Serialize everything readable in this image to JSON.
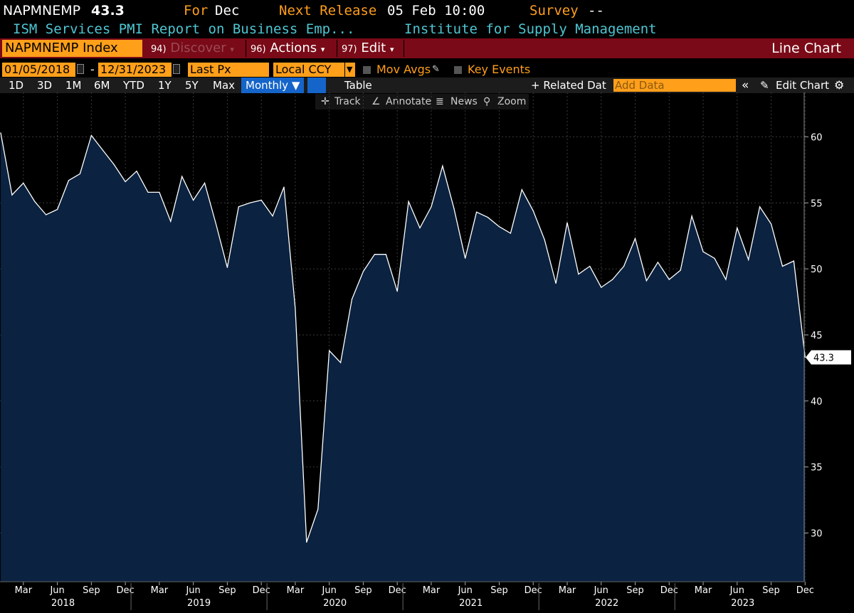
{
  "header": {
    "ticker": "NAPMNEMP",
    "last_value": "43.3",
    "for_label": "For",
    "for_period": "Dec",
    "next_release_label": "Next Release",
    "next_release_value": "05 Feb 10:00",
    "survey_label": "Survey",
    "survey_value": "--",
    "description": "ISM Services PMI Report on Business Emp...",
    "source": "Institute for Supply Management"
  },
  "command_bar": {
    "security": "NAPMNEMP Index",
    "discover_num": "94)",
    "discover_label": "Discover",
    "actions_num": "96)",
    "actions_label": "Actions",
    "edit_num": "97)",
    "edit_label": "Edit",
    "chart_type": "Line Chart"
  },
  "settings_bar": {
    "start_date": "01/05/2018",
    "date_sep": "-",
    "end_date": "12/31/2023",
    "field": "Last Px",
    "currency": "Local CCY",
    "mov_avgs": "Mov Avgs",
    "key_events": "Key Events"
  },
  "toolbar": {
    "periods": [
      "1D",
      "3D",
      "1M",
      "6M",
      "YTD",
      "1Y",
      "5Y",
      "Max"
    ],
    "frequency": "Monthly ▼",
    "table": "Table",
    "related_data": "+ Related Dat",
    "add_data_placeholder": "Add Data",
    "collapse": "«",
    "edit_chart": "Edit Chart"
  },
  "chart_tools": {
    "track": "Track",
    "annotate": "Annotate",
    "news": "News",
    "zoom": "Zoom"
  },
  "colors": {
    "background": "#000000",
    "area_fill": "#0b2240",
    "line": "#ffffff",
    "orange": "#ff9f1a",
    "grid": "#3a3a3a"
  },
  "chart_data": {
    "type": "area",
    "title": "NAPMNEMP Index",
    "ylabel": "",
    "xlabel": "",
    "ylim": [
      26.5,
      63.5
    ],
    "yticks": [
      30,
      35,
      40,
      45,
      50,
      55,
      60
    ],
    "last_value_label": "43.3",
    "x_tick_labels": [
      "Mar",
      "Jun",
      "Sep",
      "Dec",
      "Mar",
      "Jun",
      "Sep",
      "Dec",
      "Mar",
      "Jun",
      "Sep",
      "Dec",
      "Mar",
      "Jun",
      "Sep",
      "Dec",
      "Mar",
      "Jun",
      "Sep",
      "Dec",
      "Mar",
      "Jun",
      "Sep",
      "Dec"
    ],
    "year_labels": [
      "2018",
      "2019",
      "2020",
      "2021",
      "2022",
      "2023"
    ],
    "series": [
      {
        "name": "NAPMNEMP Index",
        "start": "2018-01",
        "values": [
          60.3,
          55.6,
          56.5,
          55.1,
          54.1,
          54.5,
          56.7,
          57.2,
          60.1,
          59.0,
          57.9,
          56.6,
          57.4,
          55.8,
          55.8,
          53.6,
          57.0,
          55.2,
          56.5,
          53.4,
          50.1,
          54.7,
          55.0,
          55.2,
          54.0,
          56.2,
          47.0,
          29.3,
          31.8,
          43.8,
          42.9,
          47.7,
          49.8,
          51.1,
          51.1,
          48.3,
          55.1,
          53.1,
          54.7,
          57.8,
          54.6,
          50.8,
          54.3,
          53.9,
          53.2,
          52.7,
          56.0,
          54.4,
          52.2,
          48.9,
          53.5,
          49.6,
          50.2,
          48.6,
          49.2,
          50.2,
          52.3,
          49.1,
          50.5,
          49.2,
          49.9,
          54.0,
          51.3,
          50.8,
          49.2,
          53.1,
          50.7,
          54.7,
          53.4,
          50.2,
          50.6,
          43.3
        ]
      }
    ]
  }
}
